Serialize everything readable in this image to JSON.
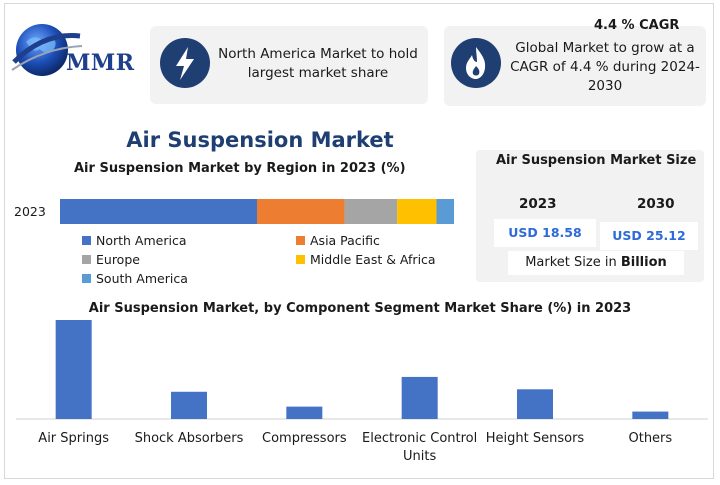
{
  "brand": {
    "name": "MMR"
  },
  "cards": {
    "left": {
      "text": "North America Market to hold largest market share",
      "icon": "lightning-icon"
    },
    "right": {
      "cagr_label": "4.4 % CAGR",
      "text": "Global Market to grow at a CAGR of 4.4 % during 2024-2030",
      "icon": "flame-icon"
    }
  },
  "title": "Air Suspension Market",
  "size_panel": {
    "title": "Air Suspension Market Size",
    "year1": "2023",
    "value1": "USD 18.58",
    "year2": "2030",
    "value2": "USD 25.12",
    "unit_prefix": "Market Size in ",
    "unit_bold": "Billion"
  },
  "colors": {
    "accent": "#1f3f73",
    "bar": "#4472c4"
  },
  "chart_data": [
    {
      "type": "bar",
      "orientation": "horizontal-stacked",
      "title": "Air Suspension Market by Region in 2023 (%)",
      "categories": [
        "2023"
      ],
      "series": [
        {
          "name": "North America",
          "values": [
            45
          ],
          "color": "#4472c4"
        },
        {
          "name": "Asia Pacific",
          "values": [
            20
          ],
          "color": "#ed7d31"
        },
        {
          "name": "Europe",
          "values": [
            12
          ],
          "color": "#a5a5a5"
        },
        {
          "name": "Middle East & Africa",
          "values": [
            9
          ],
          "color": "#ffc000"
        },
        {
          "name": "South America",
          "values": [
            4
          ],
          "color": "#5b9bd5"
        }
      ],
      "xlim": [
        0,
        90
      ],
      "legend": "bottom",
      "grid": false
    },
    {
      "type": "bar",
      "title": "Air Suspension Market, by Component Segment Market Share (%) in 2023",
      "categories": [
        "Air Springs",
        "Shock Absorbers",
        "Compressors",
        "Electronic Control Units",
        "Height Sensors",
        "Others"
      ],
      "values": [
        40,
        11,
        5,
        17,
        12,
        3
      ],
      "ylim": [
        0,
        40
      ],
      "grid": false,
      "legend": "none"
    }
  ]
}
